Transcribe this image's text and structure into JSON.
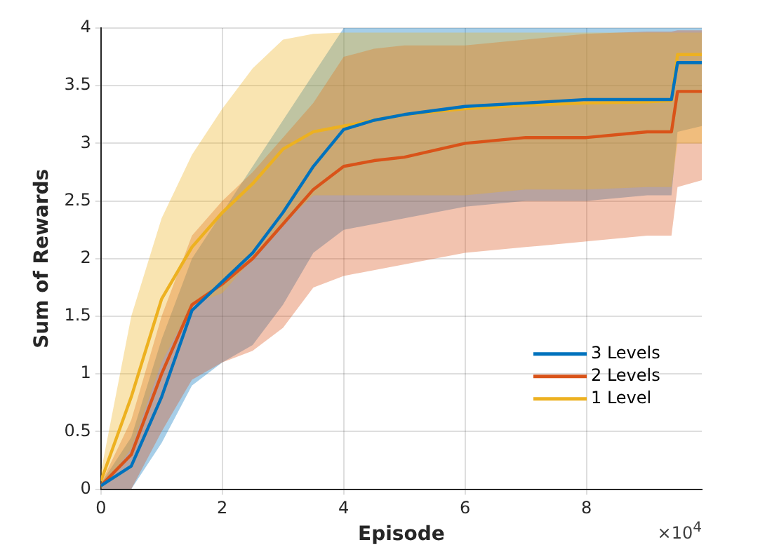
{
  "chart_data": {
    "type": "line",
    "xlabel": "Episode",
    "ylabel": "Sum of Rewards",
    "annotations": [
      "×10$^{4}$"
    ],
    "x": [
      0,
      0.5,
      1,
      1.5,
      2,
      2.5,
      3,
      3.5,
      4,
      4.5,
      5,
      6,
      7,
      8,
      9,
      9.4,
      9.5,
      9.9
    ],
    "xlim": [
      0,
      9.9
    ],
    "xticks": [
      0,
      2,
      4,
      6,
      8
    ],
    "ylim": [
      0,
      4
    ],
    "yticks": [
      0,
      0.5,
      1,
      1.5,
      2,
      2.5,
      3,
      3.5,
      4
    ],
    "grid": true,
    "legend": "right",
    "marker": "none",
    "line_style": "solid",
    "series": [
      {
        "name": "3 Levels",
        "color": "#0072bd",
        "values": [
          0.03,
          0.2,
          0.8,
          1.55,
          1.8,
          2.05,
          2.4,
          2.8,
          3.12,
          3.2,
          3.25,
          3.32,
          3.35,
          3.38,
          3.38,
          3.38,
          3.7,
          3.7
        ],
        "lower": [
          0,
          0,
          0.4,
          0.9,
          1.1,
          1.25,
          1.6,
          2.05,
          2.25,
          2.3,
          2.35,
          2.45,
          2.5,
          2.5,
          2.55,
          2.55,
          3.1,
          3.15
        ],
        "upper": [
          0.05,
          0.45,
          1.3,
          2,
          2.4,
          2.8,
          3.2,
          3.6,
          4,
          4,
          4,
          4,
          4,
          4,
          4,
          4,
          4,
          4
        ]
      },
      {
        "name": "2 Levels",
        "color": "#d95319",
        "values": [
          0.03,
          0.3,
          1,
          1.6,
          1.78,
          2,
          2.3,
          2.6,
          2.8,
          2.85,
          2.88,
          3,
          3.05,
          3.05,
          3.1,
          3.1,
          3.45,
          3.45
        ],
        "lower": [
          0,
          0,
          0.5,
          0.95,
          1.1,
          1.2,
          1.4,
          1.75,
          1.85,
          1.9,
          1.95,
          2.05,
          2.1,
          2.15,
          2.2,
          2.2,
          2.62,
          2.68
        ],
        "upper": [
          0.05,
          0.6,
          1.5,
          2.2,
          2.5,
          2.75,
          3.05,
          3.35,
          3.75,
          3.82,
          3.85,
          3.85,
          3.9,
          3.95,
          3.97,
          3.97,
          3.98,
          3.98
        ]
      },
      {
        "name": "1 Level",
        "color": "#edb120",
        "values": [
          0.07,
          0.8,
          1.65,
          2.1,
          2.4,
          2.65,
          2.95,
          3.1,
          3.15,
          3.2,
          3.25,
          3.3,
          3.33,
          3.35,
          3.36,
          3.37,
          3.77,
          3.77
        ],
        "lower": [
          0,
          0.35,
          1.1,
          1.6,
          1.7,
          2,
          2.3,
          2.55,
          2.55,
          2.55,
          2.55,
          2.55,
          2.6,
          2.6,
          2.62,
          2.62,
          3,
          3
        ],
        "upper": [
          0.15,
          1.5,
          2.35,
          2.9,
          3.3,
          3.65,
          3.9,
          3.95,
          3.96,
          3.96,
          3.96,
          3.96,
          3.96,
          3.96,
          3.96,
          3.96,
          3.96,
          3.96
        ]
      }
    ]
  }
}
